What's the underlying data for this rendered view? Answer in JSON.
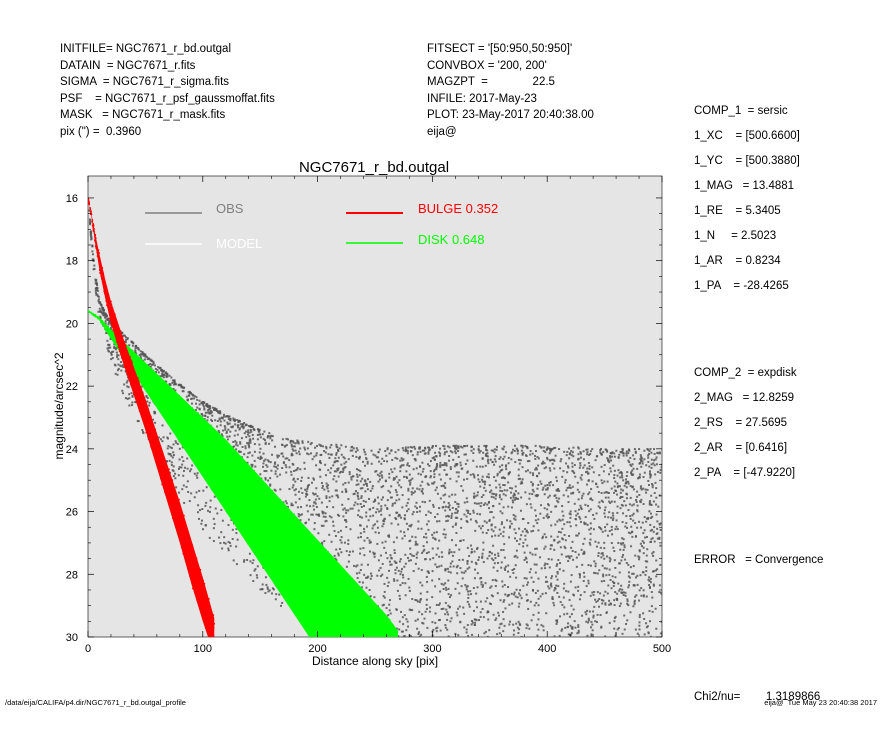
{
  "header_left": [
    "INITFILE= NGC7671_r_bd.outgal",
    "DATAIN  = NGC7671_r.fits",
    "SIGMA  = NGC7671_r_sigma.fits",
    "PSF    = NGC7671_r_psf_gaussmoffat.fits",
    "MASK   = NGC7671_r_mask.fits",
    "pix (\") =  0.3960"
  ],
  "header_mid": [
    "FITSECT = '[50:950,50:950]'",
    "CONVBOX = '200, 200'",
    "MAGZPT  =              22.5",
    "INFILE: 2017-May-23",
    "PLOT: 23-May-2017 20:40:38.00",
    "eija@"
  ],
  "header_right_comp1": [
    "COMP_1  = sersic",
    "1_XC    = [500.6600]",
    "1_YC    = [500.3880]",
    "1_MAG   = 13.4881",
    "1_RE    = 5.3405",
    "1_N     = 2.5023",
    "1_AR    = 0.8234",
    "1_PA    = -28.4265"
  ],
  "header_right_comp2": [
    "COMP_2  = expdisk",
    "2_MAG   = 12.8259",
    "2_RS    = 27.5695",
    "2_AR    = [0.6416]",
    "2_PA    = [-47.9220]"
  ],
  "header_right_error": "ERROR   = Convergence",
  "header_right_chi2": "Chi2/nu=        1.3189866",
  "footer_left": "/data/eija/CALIFA/p4.dir/NGC7671_r_bd.outgal_profile",
  "footer_right": "eija@  Tue May 23 20:40:38 2017",
  "colors": {
    "plot_bg": "#e5e5e5",
    "obs": "#555555",
    "obs_legend": "#808080",
    "model": "#ffffff",
    "bulge": "#ff0000",
    "disk": "#00ff00"
  },
  "chart_data": {
    "type": "scatter",
    "title": "NGC7671_r_bd.outgal",
    "xlabel": "Distance along sky [pix]",
    "ylabel": "magnitude/arcsec^2",
    "xlim": [
      0,
      500
    ],
    "ylim": [
      30,
      15.3
    ],
    "y_inverted": true,
    "xticks": [
      0,
      100,
      200,
      300,
      400,
      500
    ],
    "yticks": [
      16,
      18,
      20,
      22,
      24,
      26,
      28,
      30
    ],
    "grid": false,
    "legend_position": "top-left",
    "legend": [
      {
        "label": "OBS",
        "color": "#808080"
      },
      {
        "label": "MODEL",
        "color": "#ffffff"
      },
      {
        "label": "BULGE  0.352",
        "color": "#ff0000"
      },
      {
        "label": "DISK  0.648",
        "color": "#00ff00"
      }
    ],
    "series": [
      {
        "name": "BULGE  0.352",
        "kind": "band",
        "x": [
          0,
          3,
          6,
          10,
          15,
          20,
          30,
          40,
          50,
          60,
          70,
          80,
          90,
          100,
          110
        ],
        "y_low": [
          16.0,
          16.6,
          17.4,
          18.3,
          19.2,
          20.0,
          21.2,
          22.3,
          23.4,
          24.6,
          25.8,
          27.0,
          28.3,
          29.5,
          30.6
        ],
        "y_high": [
          16.0,
          16.5,
          17.1,
          17.8,
          18.6,
          19.3,
          20.4,
          21.4,
          22.4,
          23.5,
          24.6,
          25.7,
          26.9,
          28.1,
          29.4
        ]
      },
      {
        "name": "DISK  0.648",
        "kind": "band",
        "x": [
          0,
          10,
          20,
          40,
          60,
          80,
          100,
          120,
          140,
          160,
          180,
          200,
          220,
          240,
          260,
          270
        ],
        "y_low": [
          19.6,
          19.9,
          20.5,
          21.6,
          22.7,
          23.8,
          24.9,
          26.0,
          27.1,
          28.2,
          29.3,
          30.4,
          30.4,
          30.4,
          30.4,
          30.4
        ],
        "y_high": [
          19.6,
          19.8,
          20.2,
          20.9,
          21.6,
          22.3,
          23.0,
          23.7,
          24.5,
          25.3,
          26.1,
          26.9,
          27.7,
          28.5,
          29.3,
          29.8
        ]
      },
      {
        "name": "OBS",
        "kind": "scatter_envelope",
        "x": [
          0,
          5,
          10,
          20,
          30,
          50,
          75,
          100,
          125,
          150,
          175,
          200,
          250,
          300,
          350,
          400,
          450,
          500
        ],
        "y_upper": [
          16.0,
          18.0,
          19.3,
          20.0,
          20.3,
          21.0,
          21.8,
          22.5,
          23.0,
          23.4,
          23.7,
          23.8,
          24.0,
          23.9,
          23.9,
          23.9,
          24.0,
          24.0
        ],
        "y_lower": [
          16.2,
          18.5,
          20.0,
          21.2,
          22.2,
          23.8,
          25.3,
          26.6,
          27.6,
          28.5,
          29.2,
          29.8,
          30.0,
          30.0,
          30.0,
          30.0,
          30.0,
          30.0
        ]
      }
    ]
  }
}
